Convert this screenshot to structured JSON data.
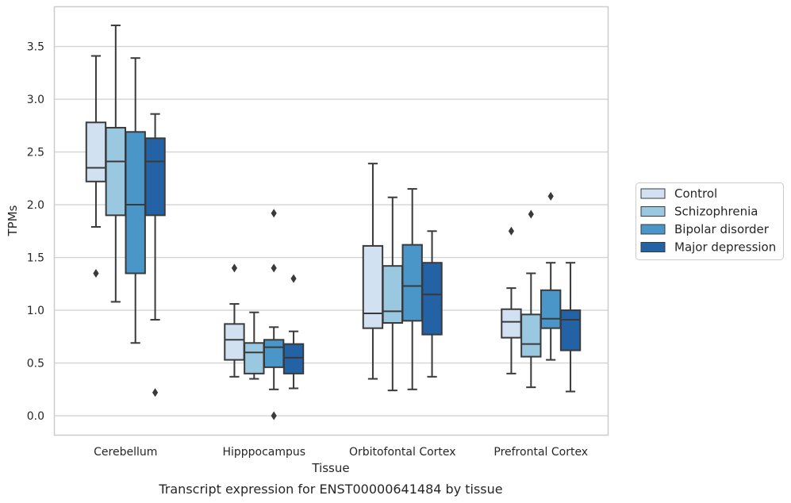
{
  "colors": {
    "Control": "#d2e1f1",
    "Schizophrenia": "#9ac8e0",
    "Bipolar disorder": "#4b96c8",
    "Major depression": "#2362a4",
    "line": "#3a3a3a",
    "grid": "#d4d4d4",
    "frame": "#cccccc"
  },
  "chart_data": {
    "type": "box",
    "title": "",
    "caption": "Transcript expression for ENST00000641484 by tissue",
    "xlabel": "Tissue",
    "ylabel": "TPMs",
    "ylim": [
      -0.18,
      3.88
    ],
    "yticks": [
      0.0,
      0.5,
      1.0,
      1.5,
      2.0,
      2.5,
      3.0,
      3.5
    ],
    "ytick_labels": [
      "0.0",
      "0.5",
      "1.0",
      "1.5",
      "2.0",
      "2.5",
      "3.0",
      "3.5"
    ],
    "grid": true,
    "legend_position": "right",
    "categories": [
      "Cerebellum",
      "Hipppocampus",
      "Orbitofontal Cortex",
      "Prefrontal Cortex"
    ],
    "series": [
      {
        "name": "Control",
        "boxes": [
          {
            "whisker_low": 1.79,
            "q1": 2.22,
            "median": 2.35,
            "q3": 2.78,
            "whisker_high": 3.41,
            "outliers": [
              1.35
            ]
          },
          {
            "whisker_low": 0.37,
            "q1": 0.53,
            "median": 0.72,
            "q3": 0.87,
            "whisker_high": 1.06,
            "outliers": [
              1.4
            ]
          },
          {
            "whisker_low": 0.35,
            "q1": 0.83,
            "median": 0.97,
            "q3": 1.61,
            "whisker_high": 2.39,
            "outliers": []
          },
          {
            "whisker_low": 0.4,
            "q1": 0.74,
            "median": 0.89,
            "q3": 1.01,
            "whisker_high": 1.21,
            "outliers": [
              1.75
            ]
          }
        ]
      },
      {
        "name": "Schizophrenia",
        "boxes": [
          {
            "whisker_low": 1.08,
            "q1": 1.9,
            "median": 2.41,
            "q3": 2.73,
            "whisker_high": 3.7,
            "outliers": []
          },
          {
            "whisker_low": 0.35,
            "q1": 0.4,
            "median": 0.6,
            "q3": 0.69,
            "whisker_high": 0.98,
            "outliers": []
          },
          {
            "whisker_low": 0.24,
            "q1": 0.88,
            "median": 0.99,
            "q3": 1.42,
            "whisker_high": 2.07,
            "outliers": []
          },
          {
            "whisker_low": 0.27,
            "q1": 0.56,
            "median": 0.68,
            "q3": 0.96,
            "whisker_high": 1.35,
            "outliers": [
              1.91
            ]
          }
        ]
      },
      {
        "name": "Bipolar disorder",
        "boxes": [
          {
            "whisker_low": 0.69,
            "q1": 1.35,
            "median": 2.0,
            "q3": 2.69,
            "whisker_high": 3.39,
            "outliers": []
          },
          {
            "whisker_low": 0.25,
            "q1": 0.46,
            "median": 0.65,
            "q3": 0.72,
            "whisker_high": 0.84,
            "outliers": [
              1.92,
              1.4,
              0.0
            ]
          },
          {
            "whisker_low": 0.25,
            "q1": 0.9,
            "median": 1.23,
            "q3": 1.62,
            "whisker_high": 2.15,
            "outliers": []
          },
          {
            "whisker_low": 0.53,
            "q1": 0.83,
            "median": 0.92,
            "q3": 1.19,
            "whisker_high": 1.45,
            "outliers": [
              2.08
            ]
          }
        ]
      },
      {
        "name": "Major depression",
        "boxes": [
          {
            "whisker_low": 0.91,
            "q1": 1.9,
            "median": 2.41,
            "q3": 2.63,
            "whisker_high": 2.86,
            "outliers": [
              0.22
            ]
          },
          {
            "whisker_low": 0.26,
            "q1": 0.4,
            "median": 0.55,
            "q3": 0.68,
            "whisker_high": 0.8,
            "outliers": [
              1.3
            ]
          },
          {
            "whisker_low": 0.37,
            "q1": 0.77,
            "median": 1.15,
            "q3": 1.45,
            "whisker_high": 1.75,
            "outliers": []
          },
          {
            "whisker_low": 0.23,
            "q1": 0.62,
            "median": 0.91,
            "q3": 1.0,
            "whisker_high": 1.45,
            "outliers": []
          }
        ]
      }
    ]
  }
}
